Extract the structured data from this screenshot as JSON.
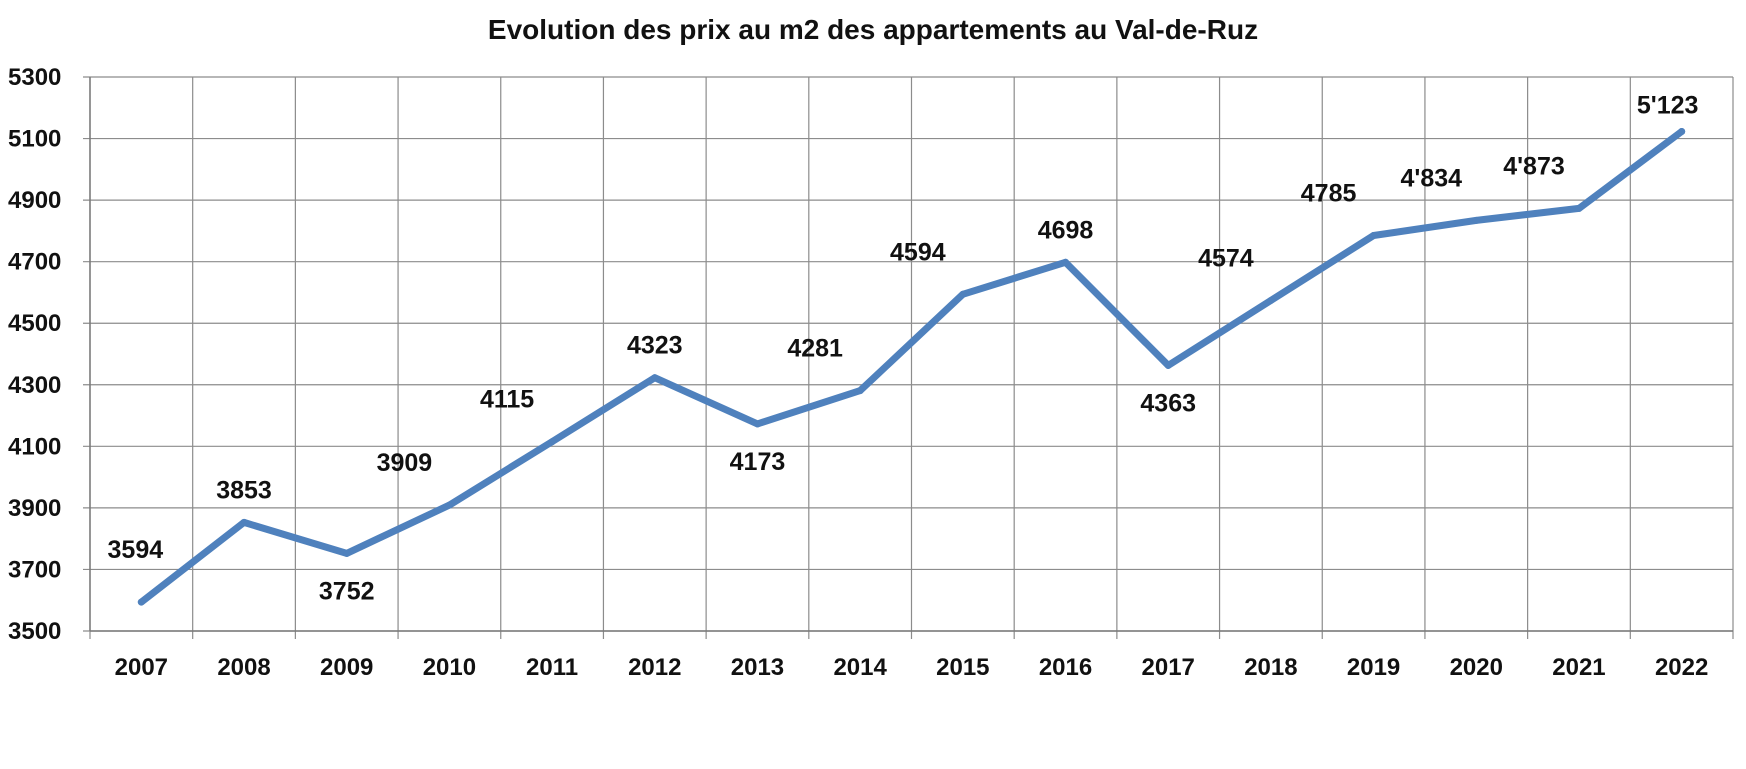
{
  "chart_data": {
    "type": "line",
    "title": "Evolution des prix au m2 des appartements au Val-de-Ruz",
    "xlabel": "",
    "ylabel": "",
    "categories": [
      "2007",
      "2008",
      "2009",
      "2010",
      "2011",
      "2012",
      "2013",
      "2014",
      "2015",
      "2016",
      "2017",
      "2018",
      "2019",
      "2020",
      "2021",
      "2022"
    ],
    "series": [
      {
        "values": [
          3594,
          3853,
          3752,
          3909,
          4115,
          4323,
          4173,
          4281,
          4594,
          4698,
          4363,
          4574,
          4785,
          4834,
          4873,
          5123
        ],
        "data_labels": [
          "3594",
          "3853",
          "3752",
          "3909",
          "4115",
          "4323",
          "4173",
          "4281",
          "4594",
          "4698",
          "4363",
          "4574",
          "4785",
          "4'834",
          "4'873",
          "5'123"
        ],
        "color": "#4F81BD"
      }
    ],
    "ylim": [
      3500,
      5300
    ],
    "yticks": [
      "3500",
      "3700",
      "3900",
      "4100",
      "4300",
      "4500",
      "4700",
      "4900",
      "5100",
      "5300"
    ],
    "grid": true,
    "legend": "none"
  }
}
